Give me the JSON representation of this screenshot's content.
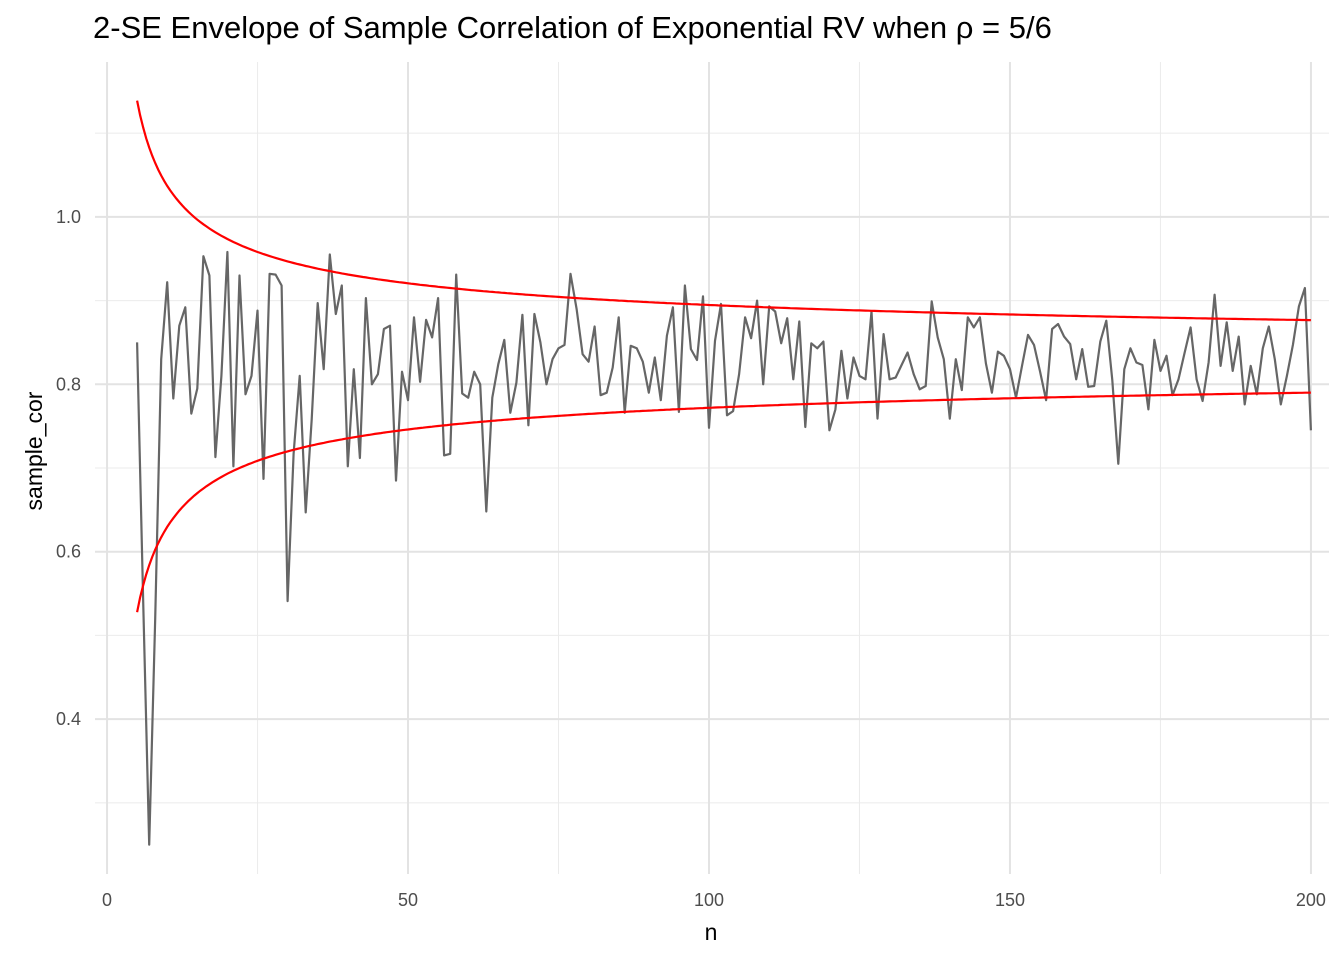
{
  "chart_data": {
    "type": "line",
    "title": "2-SE Envelope of Sample Correlation of Exponential RV when ρ = 5/6",
    "xlabel": "n",
    "ylabel": "sample_cor",
    "xlim": [
      -2,
      203
    ],
    "ylim": [
      0.215,
      1.185
    ],
    "x_ticks": [
      0,
      50,
      100,
      150,
      200
    ],
    "x_tick_labels": [
      "0",
      "50",
      "100",
      "150",
      "200"
    ],
    "y_ticks": [
      0.4,
      0.6,
      0.8,
      1.0
    ],
    "y_tick_labels": [
      "0.4",
      "0.6",
      "0.8",
      "1.0"
    ],
    "grid": true,
    "legend": "none",
    "series": [
      {
        "line_color": "#666666",
        "x": [
          5,
          6,
          7,
          8,
          9,
          10,
          11,
          12,
          13,
          14,
          15,
          16,
          17,
          18,
          19,
          20,
          21,
          22,
          23,
          24,
          25,
          26,
          27,
          28,
          29,
          30,
          31,
          32,
          33,
          34,
          35,
          36,
          37,
          38,
          39,
          40,
          41,
          42,
          43,
          44,
          45,
          46,
          47,
          48,
          49,
          50,
          51,
          52,
          53,
          54,
          55,
          56,
          57,
          58,
          59,
          60,
          61,
          62,
          63,
          64,
          65,
          66,
          67,
          68,
          69,
          70,
          71,
          72,
          73,
          74,
          75,
          76,
          77,
          78,
          79,
          80,
          81,
          82,
          83,
          84,
          85,
          86,
          87,
          88,
          89,
          90,
          91,
          92,
          93,
          94,
          95,
          96,
          97,
          98,
          99,
          100,
          101,
          102,
          103,
          104,
          105,
          106,
          107,
          108,
          109,
          110,
          111,
          112,
          113,
          114,
          115,
          116,
          117,
          118,
          119,
          120,
          121,
          122,
          123,
          124,
          125,
          126,
          127,
          128,
          129,
          130,
          131,
          132,
          133,
          134,
          135,
          136,
          137,
          138,
          139,
          140,
          141,
          142,
          143,
          144,
          145,
          146,
          147,
          148,
          149,
          150,
          151,
          152,
          153,
          154,
          155,
          156,
          157,
          158,
          159,
          160,
          161,
          162,
          163,
          164,
          165,
          166,
          167,
          168,
          169,
          170,
          171,
          172,
          173,
          174,
          175,
          176,
          177,
          178,
          179,
          180,
          181,
          182,
          183,
          184,
          185,
          186,
          187,
          188,
          189,
          190,
          191,
          192,
          193,
          194,
          195,
          196,
          197,
          198,
          199,
          200
        ],
        "values": [
          0.85,
          0.54,
          0.25,
          0.52,
          0.83,
          0.922,
          0.783,
          0.87,
          0.892,
          0.765,
          0.795,
          0.953,
          0.93,
          0.713,
          0.81,
          0.958,
          0.702,
          0.93,
          0.788,
          0.81,
          0.888,
          0.687,
          0.932,
          0.931,
          0.918,
          0.541,
          0.717,
          0.81,
          0.647,
          0.758,
          0.897,
          0.818,
          0.955,
          0.884,
          0.918,
          0.702,
          0.818,
          0.712,
          0.903,
          0.8,
          0.812,
          0.866,
          0.87,
          0.685,
          0.815,
          0.781,
          0.88,
          0.803,
          0.877,
          0.856,
          0.903,
          0.715,
          0.717,
          0.931,
          0.789,
          0.784,
          0.815,
          0.8,
          0.648,
          0.784,
          0.824,
          0.853,
          0.766,
          0.802,
          0.883,
          0.751,
          0.884,
          0.85,
          0.8,
          0.83,
          0.843,
          0.847,
          0.932,
          0.89,
          0.836,
          0.827,
          0.869,
          0.787,
          0.79,
          0.82,
          0.88,
          0.766,
          0.846,
          0.843,
          0.827,
          0.79,
          0.832,
          0.781,
          0.858,
          0.892,
          0.767,
          0.918,
          0.842,
          0.829,
          0.905,
          0.748,
          0.852,
          0.896,
          0.763,
          0.768,
          0.812,
          0.88,
          0.855,
          0.9,
          0.8,
          0.893,
          0.887,
          0.849,
          0.879,
          0.806,
          0.875,
          0.749,
          0.849,
          0.843,
          0.851,
          0.745,
          0.77,
          0.84,
          0.783,
          0.832,
          0.81,
          0.806,
          0.887,
          0.759,
          0.86,
          0.806,
          0.808,
          0.823,
          0.838,
          0.812,
          0.794,
          0.798,
          0.899,
          0.856,
          0.83,
          0.759,
          0.83,
          0.793,
          0.88,
          0.868,
          0.88,
          0.825,
          0.79,
          0.839,
          0.834,
          0.818,
          0.784,
          0.822,
          0.859,
          0.847,
          0.815,
          0.781,
          0.866,
          0.872,
          0.857,
          0.848,
          0.806,
          0.842,
          0.797,
          0.798,
          0.851,
          0.876,
          0.805,
          0.705,
          0.818,
          0.843,
          0.826,
          0.823,
          0.77,
          0.853,
          0.816,
          0.834,
          0.787,
          0.806,
          0.837,
          0.868,
          0.806,
          0.78,
          0.826,
          0.907,
          0.822,
          0.874,
          0.816,
          0.857,
          0.776,
          0.822,
          0.788,
          0.843,
          0.869,
          0.83,
          0.776,
          0.81,
          0.847,
          0.893,
          0.915,
          0.745
        ]
      }
    ],
    "envelope": {
      "line_color": "#ff0000",
      "rho_label": "5/6",
      "x_start": 5,
      "x_end": 200
    }
  }
}
